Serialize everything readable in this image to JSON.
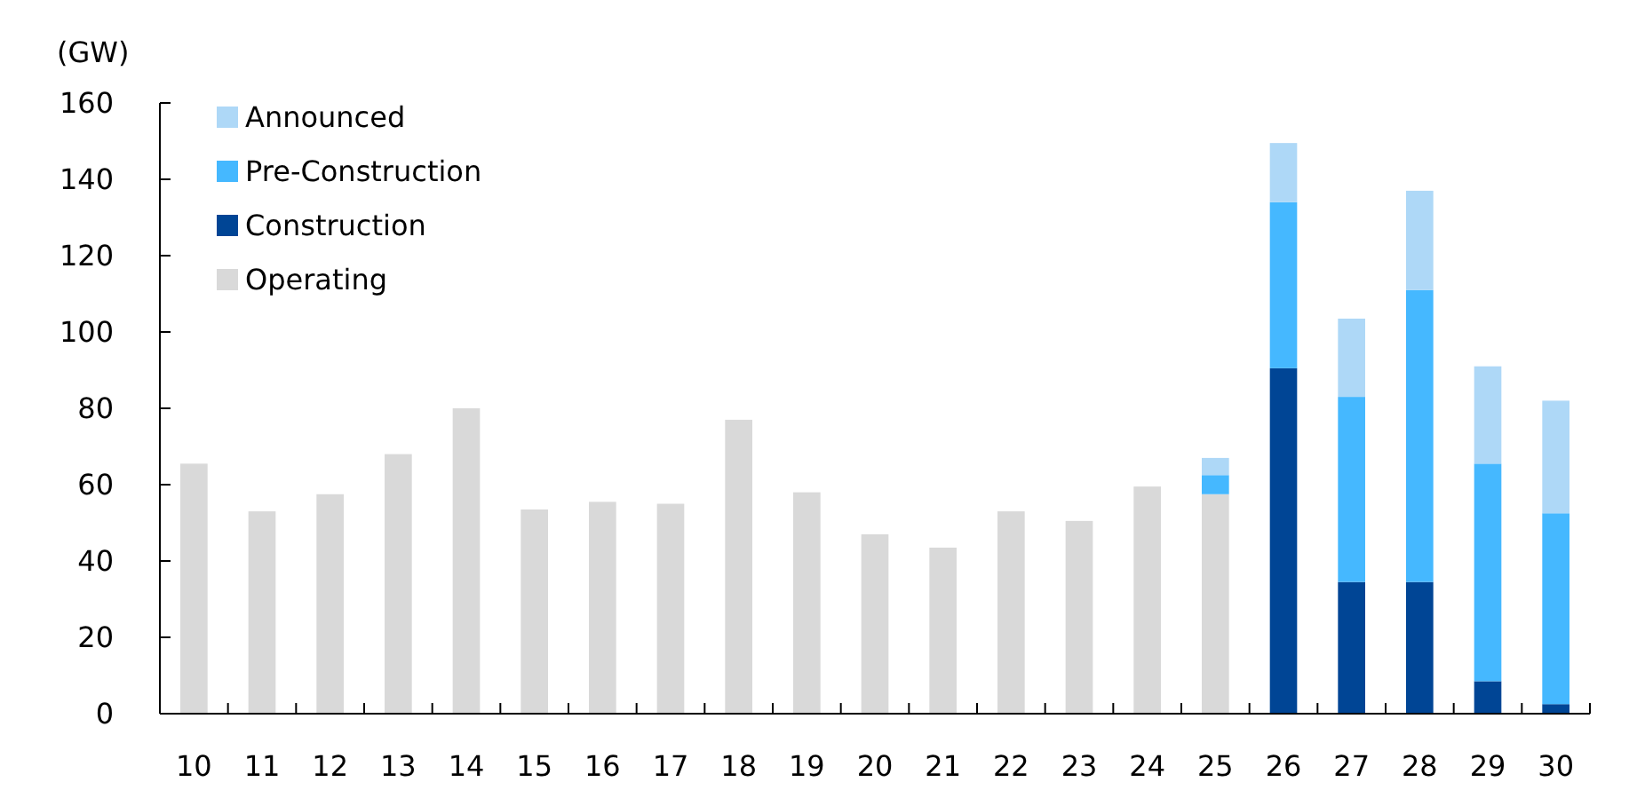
{
  "chart_data": {
    "type": "bar",
    "stacked": true,
    "ylabel": "(GW)",
    "categories": [
      "10",
      "11",
      "12",
      "13",
      "14",
      "15",
      "16",
      "17",
      "18",
      "19",
      "20",
      "21",
      "22",
      "23",
      "24",
      "25",
      "26",
      "27",
      "28",
      "29",
      "30"
    ],
    "series": [
      {
        "name": "Operating",
        "color": "#d9d9d9",
        "values": [
          65.5,
          53,
          57.5,
          68,
          80,
          53.5,
          55.5,
          55,
          77,
          58,
          47,
          43.5,
          53,
          50.5,
          59.5,
          57.5,
          null,
          null,
          null,
          null,
          null
        ]
      },
      {
        "name": "Construction",
        "color": "#004595",
        "values": [
          null,
          null,
          null,
          null,
          null,
          null,
          null,
          null,
          null,
          null,
          null,
          null,
          null,
          null,
          null,
          null,
          90.5,
          34.5,
          34.5,
          8.5,
          2.5
        ]
      },
      {
        "name": "Pre-Construction",
        "color": "#45b8ff",
        "values": [
          null,
          null,
          null,
          null,
          null,
          null,
          null,
          null,
          null,
          null,
          null,
          null,
          null,
          null,
          null,
          5,
          43.5,
          48.5,
          76.5,
          57,
          50
        ]
      },
      {
        "name": "Announced",
        "color": "#aed8f7",
        "values": [
          null,
          null,
          null,
          null,
          null,
          null,
          null,
          null,
          null,
          null,
          null,
          null,
          null,
          null,
          null,
          4.5,
          15.5,
          20.5,
          26,
          25.5,
          29.5
        ]
      }
    ],
    "ylim": [
      0,
      160
    ],
    "yticks": [
      0,
      20,
      40,
      60,
      80,
      100,
      120,
      140,
      160
    ],
    "legend": "top left"
  }
}
